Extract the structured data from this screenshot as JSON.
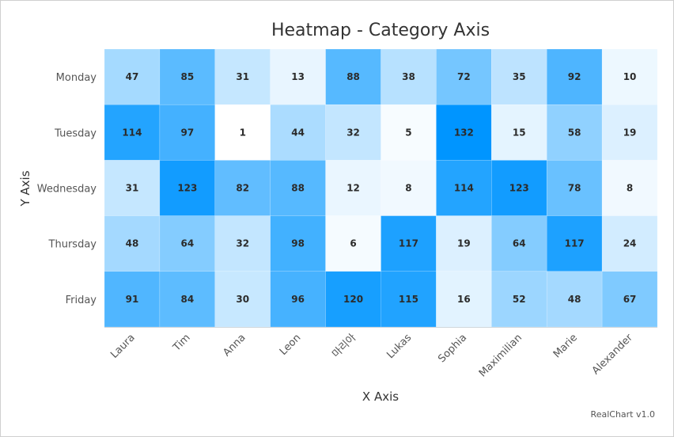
{
  "chart_data": {
    "type": "heatmap",
    "title": "Heatmap - Category Axis",
    "xlabel": "X Axis",
    "ylabel": "Y Axis",
    "x_categories": [
      "Laura",
      "Tim",
      "Anna",
      "Leon",
      "마리아",
      "Lukas",
      "Sophia",
      "Maximilian",
      "Marie",
      "Alexander"
    ],
    "y_categories": [
      "Monday",
      "Tuesday",
      "Wednesday",
      "Thursday",
      "Friday"
    ],
    "values": [
      [
        47,
        85,
        31,
        13,
        88,
        38,
        72,
        35,
        92,
        10
      ],
      [
        114,
        97,
        1,
        44,
        32,
        5,
        132,
        15,
        58,
        19
      ],
      [
        31,
        123,
        82,
        88,
        12,
        8,
        114,
        123,
        78,
        8
      ],
      [
        48,
        64,
        32,
        98,
        6,
        117,
        19,
        64,
        117,
        24
      ],
      [
        91,
        84,
        30,
        96,
        120,
        115,
        16,
        52,
        48,
        67
      ]
    ],
    "color_range": {
      "min": 1,
      "max": 132,
      "min_color": "#ffffff",
      "max_color": "#0095ff"
    },
    "data_labels": true,
    "legend": "none"
  },
  "credit": "RealChart v1.0"
}
